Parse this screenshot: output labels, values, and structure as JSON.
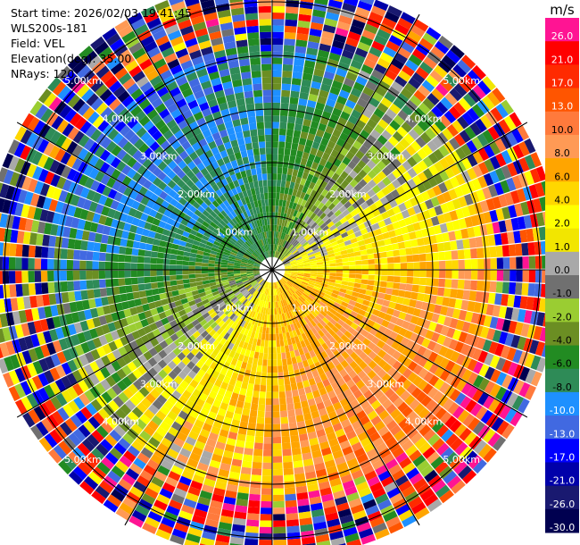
{
  "info": {
    "start_time": "Start time: 2026/02/03 19:41:45",
    "instrument": "WLS200s-181",
    "field": "Field: VEL",
    "elevation": "Elevation(deg): 35.00",
    "nrays": "NRays: 120"
  },
  "chart_data": {
    "type": "heatmap",
    "projection": "polar-ppi",
    "n_rays": 120,
    "elevation_deg": 35.0,
    "max_range_km": 5.5,
    "grid": true,
    "range_rings_km": [
      1,
      2,
      3,
      4,
      5
    ],
    "range_ring_labels": [
      "1.00km",
      "2.00km",
      "3.00km",
      "4.00km",
      "5.00km"
    ],
    "colorbar": {
      "unit": "m/s",
      "position": "right",
      "tick_labels": [
        "26.0",
        "21.0",
        "17.0",
        "13.0",
        "10.0",
        "8.0",
        "6.0",
        "4.0",
        "2.0",
        "1.0",
        "0.0",
        "-1.0",
        "-2.0",
        "-4.0",
        "-6.0",
        "-8.0",
        "-10.0",
        "-13.0",
        "-17.0",
        "-21.0",
        "-26.0",
        "-30.0"
      ],
      "colors": [
        "#ff1493",
        "#ff0000",
        "#ff2a00",
        "#ff5500",
        "#ff7a3c",
        "#ff9a55",
        "#ffa500",
        "#ffd700",
        "#ffff00",
        "#f2e600",
        "#a9a9a9",
        "#707070",
        "#9acd32",
        "#6b8e23",
        "#228b22",
        "#2e8b57",
        "#1e90ff",
        "#4169e1",
        "#0000ff",
        "#0000aa",
        "#191970",
        "#000050"
      ]
    },
    "dominant_field": {
      "north_west_sector": "negative (-4 to -8 m/s, green)",
      "south_east_sector": "positive (4 to 17 m/s, yellow to red)",
      "outer_ring": "noisy mixed values"
    }
  }
}
